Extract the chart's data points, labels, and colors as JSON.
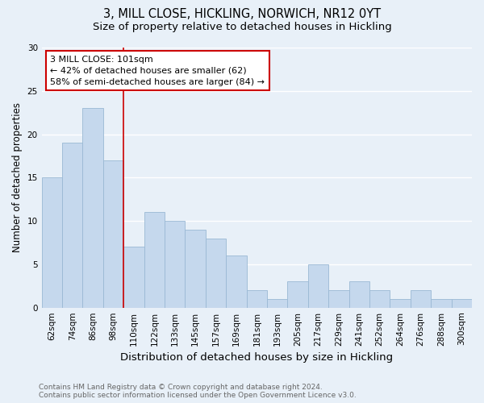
{
  "title": "3, MILL CLOSE, HICKLING, NORWICH, NR12 0YT",
  "subtitle": "Size of property relative to detached houses in Hickling",
  "xlabel": "Distribution of detached houses by size in Hickling",
  "ylabel": "Number of detached properties",
  "categories": [
    "62sqm",
    "74sqm",
    "86sqm",
    "98sqm",
    "110sqm",
    "122sqm",
    "133sqm",
    "145sqm",
    "157sqm",
    "169sqm",
    "181sqm",
    "193sqm",
    "205sqm",
    "217sqm",
    "229sqm",
    "241sqm",
    "252sqm",
    "264sqm",
    "276sqm",
    "288sqm",
    "300sqm"
  ],
  "values": [
    15,
    19,
    23,
    17,
    7,
    11,
    10,
    9,
    8,
    6,
    2,
    1,
    3,
    5,
    2,
    3,
    2,
    1,
    2,
    1,
    1
  ],
  "bar_color": "#c5d8ed",
  "bar_edge_color": "#9ab8d4",
  "background_color": "#e8f0f8",
  "grid_color": "#ffffff",
  "vline_x_index": 3,
  "vline_color": "#cc0000",
  "annotation_line1": "3 MILL CLOSE: 101sqm",
  "annotation_line2": "← 42% of detached houses are smaller (62)",
  "annotation_line3": "58% of semi-detached houses are larger (84) →",
  "annotation_box_color": "#ffffff",
  "annotation_box_edge_color": "#cc0000",
  "ylim": [
    0,
    30
  ],
  "yticks": [
    0,
    5,
    10,
    15,
    20,
    25,
    30
  ],
  "footnote": "Contains HM Land Registry data © Crown copyright and database right 2024.\nContains public sector information licensed under the Open Government Licence v3.0.",
  "title_fontsize": 10.5,
  "subtitle_fontsize": 9.5,
  "xlabel_fontsize": 9.5,
  "ylabel_fontsize": 8.5,
  "tick_fontsize": 7.5,
  "annotation_fontsize": 8,
  "footnote_fontsize": 6.5
}
